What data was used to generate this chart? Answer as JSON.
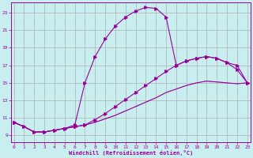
{
  "xlabel": "Windchill (Refroidissement éolien,°C)",
  "bg_color": "#c8eef0",
  "line_color": "#990099",
  "grid_color": "#b0b0b0",
  "x_ticks": [
    0,
    1,
    2,
    3,
    4,
    5,
    6,
    7,
    8,
    9,
    10,
    11,
    12,
    13,
    14,
    15,
    16,
    17,
    18,
    19,
    20,
    21,
    22,
    23
  ],
  "y_ticks": [
    9,
    11,
    13,
    15,
    17,
    19,
    21,
    23
  ],
  "ylim": [
    8.2,
    24.2
  ],
  "xlim": [
    -0.3,
    23.3
  ],
  "curve1_x": [
    0,
    1,
    2,
    3,
    4,
    5,
    6,
    7,
    8,
    9,
    10,
    11,
    12,
    13,
    14,
    15,
    16,
    17,
    18,
    19,
    20,
    21,
    22,
    23
  ],
  "curve1_y": [
    10.5,
    10.0,
    9.4,
    9.4,
    9.6,
    9.8,
    10.0,
    10.2,
    10.5,
    10.9,
    11.3,
    11.8,
    12.3,
    12.8,
    13.3,
    13.9,
    14.3,
    14.7,
    15.0,
    15.2,
    15.1,
    15.0,
    14.9,
    15.0
  ],
  "curve2_x": [
    0,
    1,
    2,
    3,
    4,
    5,
    6,
    7,
    8,
    9,
    10,
    11,
    12,
    13,
    14,
    15,
    16,
    17,
    18,
    19,
    20,
    21,
    22,
    23
  ],
  "curve2_y": [
    10.5,
    10.0,
    9.4,
    9.4,
    9.6,
    9.8,
    10.0,
    10.2,
    10.8,
    11.5,
    12.3,
    13.1,
    13.9,
    14.7,
    15.5,
    16.3,
    17.0,
    17.5,
    17.8,
    18.0,
    17.8,
    17.3,
    16.5,
    15.0
  ],
  "curve3_x": [
    0,
    1,
    2,
    3,
    4,
    5,
    6,
    7,
    8,
    9,
    10,
    11,
    12,
    13,
    14,
    15,
    16,
    17,
    18,
    19,
    20,
    21,
    22,
    23
  ],
  "curve3_y": [
    10.5,
    10.0,
    9.4,
    9.4,
    9.6,
    9.8,
    10.2,
    15.0,
    18.0,
    20.0,
    21.5,
    22.5,
    23.2,
    23.6,
    23.5,
    22.5,
    17.0,
    17.5,
    17.8,
    18.0,
    17.8,
    17.3,
    17.0,
    15.0
  ],
  "marker1_x": [
    0,
    1,
    2,
    3,
    4,
    5,
    6,
    7,
    23
  ],
  "marker2_x": [
    0,
    1,
    2,
    3,
    4,
    5,
    6,
    7,
    8,
    9,
    10,
    11,
    12,
    13,
    14,
    15,
    16,
    17,
    18,
    19,
    20,
    21,
    22,
    23
  ],
  "marker3_x": [
    0,
    6,
    7,
    8,
    9,
    10,
    11,
    12,
    13,
    14,
    15,
    16,
    17,
    18,
    19,
    20,
    21,
    22,
    23
  ]
}
